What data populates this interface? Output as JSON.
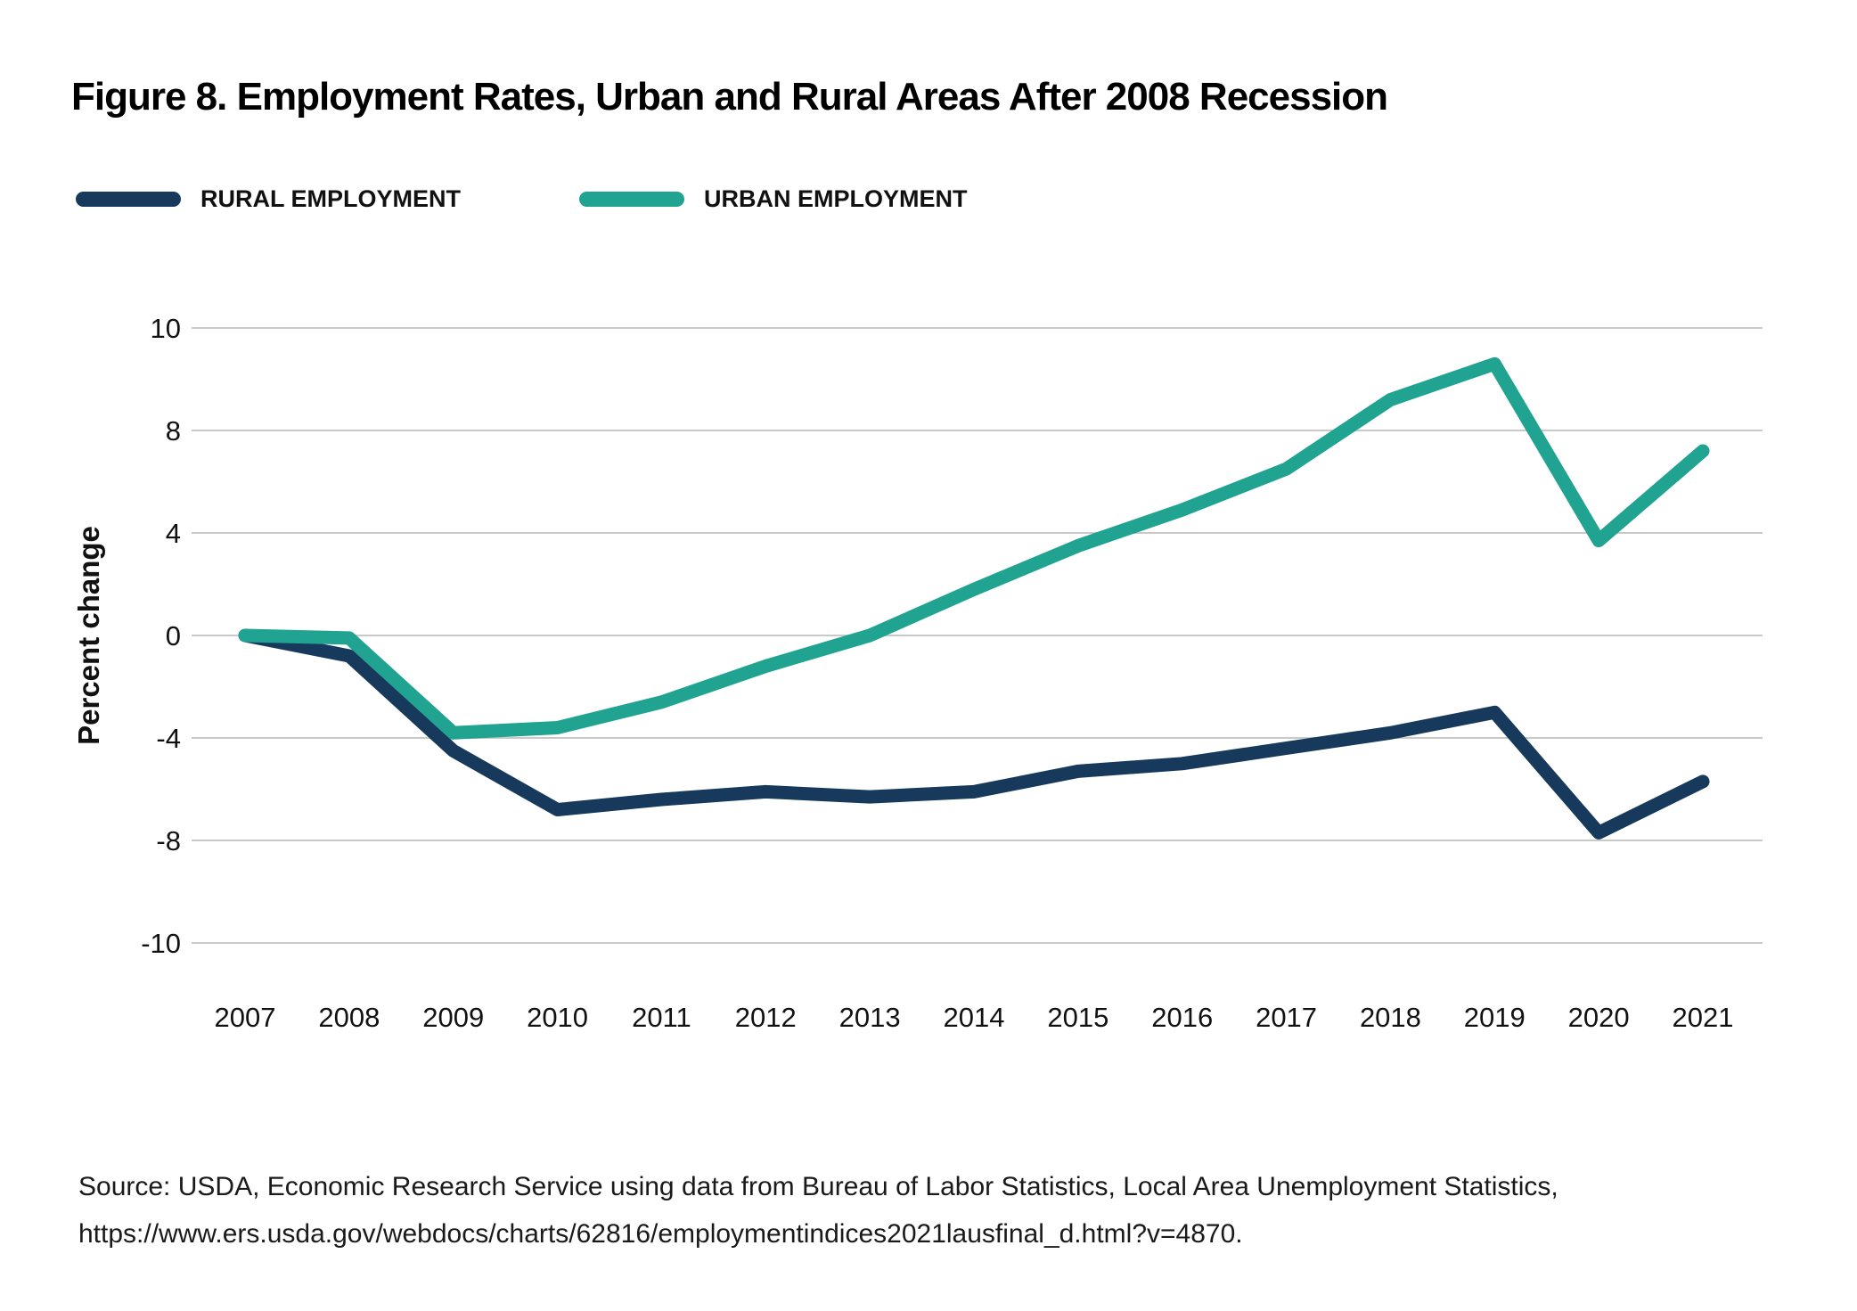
{
  "page": {
    "title": "Figure 8. Employment Rates, Urban and Rural Areas After 2008 Recession",
    "background": "#ffffff"
  },
  "legend": {
    "items": [
      {
        "label": "RURAL EMPLOYMENT",
        "color": "#17395C"
      },
      {
        "label": "URBAN EMPLOYMENT",
        "color": "#20A391"
      }
    ]
  },
  "chart_data": {
    "type": "line",
    "title": "Figure 8. Employment Rates, Urban and Rural Areas After 2008 Recession",
    "xlabel": "",
    "ylabel": "Percent change",
    "x": [
      2007,
      2008,
      2009,
      2010,
      2011,
      2012,
      2013,
      2014,
      2015,
      2016,
      2017,
      2018,
      2019,
      2020,
      2021
    ],
    "series": [
      {
        "name": "Rural employment",
        "color": "#17395C",
        "values": [
          0.0,
          -0.8,
          -4.5,
          -6.8,
          -6.4,
          -6.1,
          -6.3,
          -6.1,
          -5.3,
          -5.0,
          -4.4,
          -3.8,
          -3.0,
          -7.7,
          -5.7
        ]
      },
      {
        "name": "Urban employment",
        "color": "#20A391",
        "values": [
          0.0,
          -0.1,
          -3.8,
          -3.6,
          -2.6,
          -1.2,
          0.0,
          1.8,
          3.5,
          4.9,
          6.5,
          9.2,
          10.6,
          3.7,
          7.2
        ]
      }
    ],
    "y_tick_labels": [
      "10",
      "8",
      "4",
      "0",
      "-4",
      "-8",
      "-10"
    ],
    "grid": true,
    "grid_color": "#c9c9c9",
    "legend_position": "top-left",
    "axis_text_color": "#111111"
  },
  "source": {
    "line1": "Source: USDA, Economic Research Service using data from Bureau of Labor Statistics, Local Area Unemployment Statistics,",
    "line2": "https://www.ers.usda.gov/webdocs/charts/62816/employmentindices2021lausfinal_d.html?v=4870."
  }
}
